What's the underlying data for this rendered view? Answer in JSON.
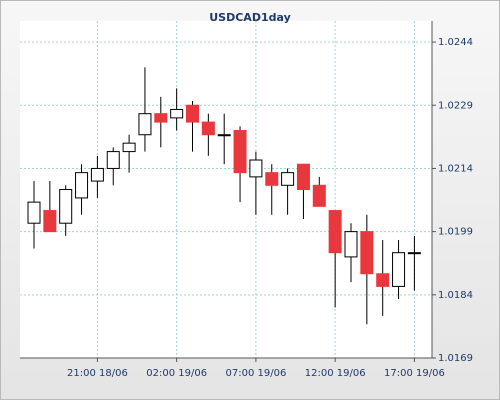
{
  "chart_data": {
    "type": "candlestick",
    "title": "USDCAD1day",
    "categories": [
      null,
      null,
      null,
      null,
      "21:00 18/06",
      null,
      null,
      null,
      null,
      "02:00 19/06",
      null,
      null,
      null,
      null,
      "07:00 19/06",
      null,
      null,
      null,
      null,
      "12:00 19/06",
      null,
      null,
      null,
      null,
      "17:00 19/06"
    ],
    "open": [
      1.0201,
      1.0204,
      1.0201,
      1.0207,
      1.0211,
      1.0214,
      1.0218,
      1.0222,
      1.0227,
      1.0226,
      1.0229,
      1.0225,
      1.0222,
      1.0223,
      1.0212,
      1.0213,
      1.021,
      1.0215,
      1.021,
      1.0204,
      1.0193,
      1.0199,
      1.0189,
      1.0186,
      1.0194
    ],
    "high": [
      1.0211,
      1.0211,
      1.021,
      1.0215,
      1.0217,
      1.0219,
      1.0222,
      1.0238,
      1.0231,
      1.0233,
      1.023,
      1.0227,
      1.0227,
      1.0224,
      1.0218,
      1.0215,
      1.0214,
      1.0215,
      1.0212,
      1.0204,
      1.0201,
      1.0203,
      1.0197,
      1.0197,
      1.0198
    ],
    "low": [
      1.0195,
      1.0199,
      1.0198,
      1.0203,
      1.0207,
      1.021,
      1.0213,
      1.0218,
      1.0219,
      1.0223,
      1.0218,
      1.0217,
      1.0215,
      1.0206,
      1.0203,
      1.0203,
      1.0203,
      1.0202,
      1.0205,
      1.0181,
      1.0187,
      1.0177,
      1.0179,
      1.0183,
      1.0185
    ],
    "close": [
      1.0206,
      1.0199,
      1.0209,
      1.0213,
      1.0214,
      1.0218,
      1.022,
      1.0227,
      1.0225,
      1.0228,
      1.0225,
      1.0222,
      1.0222,
      1.0213,
      1.0216,
      1.021,
      1.0213,
      1.0209,
      1.0205,
      1.0194,
      1.0199,
      1.0189,
      1.0186,
      1.0194,
      1.0194
    ],
    "up_color": "#ffffff",
    "down_color": "#e8383d",
    "ylim": [
      1.0169,
      1.0249
    ],
    "yticks": [
      1.0169,
      1.0184,
      1.0199,
      1.0214,
      1.0229,
      1.0244
    ],
    "grid": true
  }
}
